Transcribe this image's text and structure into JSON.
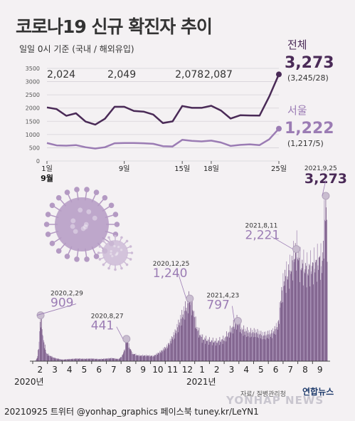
{
  "title": "코로나19 신규 확진자 추이",
  "subtitle": "일일 0시 기준 (국내 / 해외유입)",
  "footer": "20210925 트위터 @yonhap_graphics  페이스북 tuney.kr/LeYN1",
  "source": "자료/ 질병관리청",
  "agency": "연합뉴스",
  "watermark": "YONHAP NEWS",
  "colors": {
    "national": "#4a2a57",
    "seoul": "#9b7cb4",
    "bar": "#7a5b88",
    "bar_light": "#a48bb3",
    "virus": "#b49ac3"
  },
  "chart_data": [
    {
      "type": "line",
      "title": "",
      "ylim": [
        0,
        3500
      ],
      "y_ticks": [
        0,
        500,
        1000,
        1500,
        2000,
        2500,
        3000,
        3500
      ],
      "x_tick_labels": [
        "1일",
        "9일",
        "15일",
        "18일",
        "25일"
      ],
      "x_month_label": "9월",
      "x": [
        1,
        2,
        3,
        4,
        5,
        6,
        7,
        8,
        9,
        10,
        11,
        12,
        13,
        14,
        15,
        16,
        17,
        18,
        19,
        20,
        21,
        22,
        23,
        24,
        25
      ],
      "series": [
        {
          "name": "전체",
          "values": [
            2024,
            1961,
            1709,
            1804,
            1490,
            1375,
            1597,
            2049,
            2049,
            1892,
            1865,
            1755,
            1433,
            1497,
            2078,
            2009,
            2008,
            2087,
            1909,
            1605,
            1729,
            1720,
            1716,
            2434,
            3273
          ],
          "annotations": [
            {
              "x": 1,
              "label": "2,024"
            },
            {
              "x": 8,
              "label": "2,049"
            },
            {
              "x": 15,
              "label": "2,078"
            },
            {
              "x": 18,
              "label": "2,087"
            }
          ],
          "final_label": "3,273",
          "final_detail": "(3,245/28)"
        },
        {
          "name": "서울",
          "values": [
            680,
            590,
            580,
            600,
            520,
            470,
            520,
            670,
            680,
            680,
            670,
            650,
            560,
            550,
            800,
            760,
            740,
            770,
            700,
            570,
            610,
            630,
            600,
            820,
            1222
          ],
          "final_label": "1,222",
          "final_detail": "(1,217/5)"
        }
      ]
    },
    {
      "type": "bar",
      "title": "",
      "ylim": [
        0,
        3273
      ],
      "x_month_labels": [
        "2",
        "3",
        "4",
        "5",
        "6",
        "7",
        "8",
        "9",
        "10",
        "11",
        "12",
        "1",
        "2",
        "3",
        "4",
        "5",
        "6",
        "7",
        "8",
        "9"
      ],
      "year_labels": [
        "2020년",
        "2021년"
      ],
      "profile": [
        [
          0,
          0
        ],
        [
          5,
          2
        ],
        [
          9,
          60
        ],
        [
          12,
          250
        ],
        [
          16,
          909
        ],
        [
          22,
          400
        ],
        [
          28,
          150
        ],
        [
          36,
          100
        ],
        [
          45,
          60
        ],
        [
          60,
          30
        ],
        [
          75,
          40
        ],
        [
          90,
          50
        ],
        [
          105,
          45
        ],
        [
          120,
          50
        ],
        [
          135,
          40
        ],
        [
          150,
          50
        ],
        [
          162,
          60
        ],
        [
          175,
          40
        ],
        [
          182,
          100
        ],
        [
          188,
          250
        ],
        [
          191,
          441
        ],
        [
          196,
          300
        ],
        [
          203,
          150
        ],
        [
          215,
          110
        ],
        [
          232,
          110
        ],
        [
          246,
          100
        ],
        [
          260,
          180
        ],
        [
          275,
          300
        ],
        [
          290,
          550
        ],
        [
          305,
          900
        ],
        [
          315,
          1100
        ],
        [
          320,
          1240
        ],
        [
          326,
          1050
        ],
        [
          334,
          650
        ],
        [
          345,
          450
        ],
        [
          360,
          400
        ],
        [
          375,
          380
        ],
        [
          390,
          430
        ],
        [
          400,
          560
        ],
        [
          410,
          700
        ],
        [
          418,
          797
        ],
        [
          425,
          620
        ],
        [
          440,
          560
        ],
        [
          455,
          560
        ],
        [
          470,
          500
        ],
        [
          488,
          550
        ],
        [
          500,
          700
        ],
        [
          505,
          1200
        ],
        [
          512,
          1600
        ],
        [
          525,
          1800
        ],
        [
          537,
          2221
        ],
        [
          545,
          1900
        ],
        [
          560,
          1800
        ],
        [
          575,
          1900
        ],
        [
          585,
          2000
        ],
        [
          590,
          1900
        ],
        [
          597,
          3273
        ],
        [
          600,
          2400
        ]
      ],
      "annotations": [
        {
          "date": "2020,2,29",
          "value": "909"
        },
        {
          "date": "2020,8,27",
          "value": "441"
        },
        {
          "date": "2020,12,25",
          "value": "1,240"
        },
        {
          "date": "2021,4,23",
          "value": "797"
        },
        {
          "date": "2021,8,11",
          "value": "2,221"
        },
        {
          "date": "2021,9,25",
          "value": "3,273"
        }
      ]
    }
  ]
}
